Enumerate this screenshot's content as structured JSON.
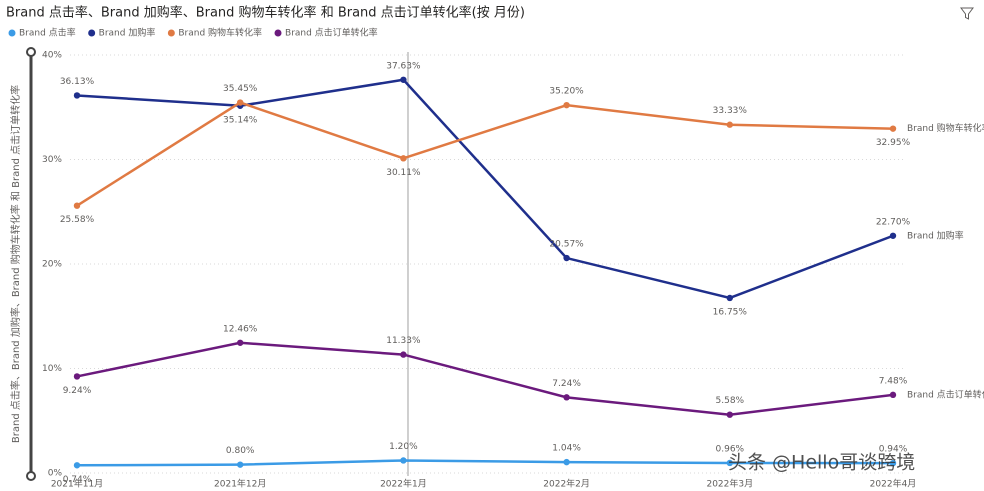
{
  "chart_data": {
    "type": "line",
    "title": "Brand 点击率、Brand 加购率、Brand 购物车转化率 和 Brand 点击订单转化率(按 月份)",
    "y_axis_title": "Brand 点击率、Brand 加购率、Brand 购物车转化率 和 Brand 点击订单转化率",
    "watermark": "头条 @Hello哥谈跨境",
    "categories": [
      "2021年11月",
      "2021年12月",
      "2022年1月",
      "2022年2月",
      "2022年3月",
      "2022年4月"
    ],
    "ylim": [
      0,
      40
    ],
    "yticks": [
      {
        "value": 0,
        "label": "0%"
      },
      {
        "value": 10,
        "label": "10%"
      },
      {
        "value": 20,
        "label": "20%"
      },
      {
        "value": 30,
        "label": "30%"
      },
      {
        "value": 40,
        "label": "40%"
      }
    ],
    "grid": true,
    "series": [
      {
        "name": "Brand 点击率",
        "color": "#3b9be6",
        "values": [
          0.74,
          0.8,
          1.2,
          1.04,
          0.96,
          0.94
        ],
        "value_labels": [
          "0.74%",
          "0.80%",
          "1.20%",
          "1.04%",
          "0.96%",
          "0.94%"
        ]
      },
      {
        "name": "Brand 加购率",
        "color": "#1f2f8c",
        "values": [
          36.13,
          35.14,
          37.63,
          20.57,
          16.75,
          22.7
        ],
        "value_labels": [
          "36.13%",
          "35.14%",
          "37.63%",
          "20.57%",
          "16.75%",
          "22.70%"
        ]
      },
      {
        "name": "Brand 购物车转化率",
        "color": "#e07a43",
        "values": [
          25.58,
          35.45,
          30.11,
          35.2,
          33.33,
          32.95
        ],
        "value_labels": [
          "25.58%",
          "35.45%",
          "30.11%",
          "35.20%",
          "33.33%",
          "32.95%"
        ]
      },
      {
        "name": "Brand 点击订单转化率",
        "color": "#6b1a7d",
        "values": [
          9.24,
          12.46,
          11.33,
          7.24,
          5.58,
          7.48
        ],
        "value_labels": [
          "9.24%",
          "12.46%",
          "11.33%",
          "7.24%",
          "5.58%",
          "7.48%"
        ]
      }
    ]
  }
}
